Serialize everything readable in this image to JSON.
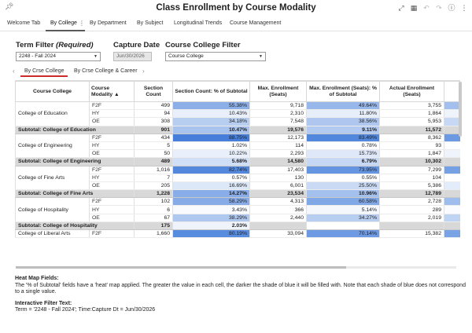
{
  "header": {
    "title": "Class Enrollment by Course Modality",
    "icons": [
      "pin-icon",
      "expand-icon",
      "grid-icon",
      "undo-icon",
      "redo-icon",
      "info-icon",
      "more-vertical-icon"
    ]
  },
  "tabs": [
    {
      "label": "Welcome Tab"
    },
    {
      "label": "By College"
    },
    {
      "label": "By Department"
    },
    {
      "label": "By Subject"
    },
    {
      "label": "Longitudinal Trends"
    },
    {
      "label": "Course Management"
    }
  ],
  "filters": {
    "term_label": "Term Filter ",
    "term_label_italic": "(Required)",
    "term_value": "2248 - Fall 2024",
    "capture_label": "Capture Date",
    "capture_value": "Jun/30/2026",
    "college_label": "Course College Filter",
    "college_value": "Course College"
  },
  "subtabs": [
    {
      "label": "By Crse College"
    },
    {
      "label": "By Crse College & Career"
    }
  ],
  "table": {
    "headers": [
      "Course College",
      "Course Modality",
      "Section Count",
      "Section Count: % of Subtotal",
      "Max. Enrollment (Seats)",
      "Max. Enrollment (Seats): % of Subtotal",
      "Actual Enrollment (Seats)",
      "Actu"
    ],
    "groups": [
      {
        "college": "College of Education",
        "rows": [
          {
            "mod": "F2F",
            "sec": "499",
            "sec_pct": "55.38%",
            "max": "9,718",
            "max_pct": "49.64%",
            "act": "3,755"
          },
          {
            "mod": "HY",
            "sec": "94",
            "sec_pct": "10.43%",
            "max": "2,310",
            "max_pct": "11.80%",
            "act": "1,864"
          },
          {
            "mod": "OE",
            "sec": "308",
            "sec_pct": "34.18%",
            "max": "7,548",
            "max_pct": "38.56%",
            "act": "5,953"
          }
        ],
        "subtotal": {
          "label": "Subtotal: College of Education",
          "sec": "901",
          "sec_pct": "10.47%",
          "max": "19,576",
          "max_pct": "9.11%",
          "act": "11,572"
        }
      },
      {
        "college": "College of Engineering",
        "rows": [
          {
            "mod": "F2F",
            "sec": "434",
            "sec_pct": "88.75%",
            "max": "12,173",
            "max_pct": "83.49%",
            "act": "8,362"
          },
          {
            "mod": "HY",
            "sec": "5",
            "sec_pct": "1.02%",
            "max": "114",
            "max_pct": "0.78%",
            "act": "93"
          },
          {
            "mod": "OE",
            "sec": "50",
            "sec_pct": "10.22%",
            "max": "2,293",
            "max_pct": "15.73%",
            "act": "1,847"
          }
        ],
        "subtotal": {
          "label": "Subtotal: College of Engineering",
          "sec": "489",
          "sec_pct": "5.68%",
          "max": "14,580",
          "max_pct": "6.79%",
          "act": "10,302"
        }
      },
      {
        "college": "College of Fine Arts",
        "rows": [
          {
            "mod": "F2F",
            "sec": "1,016",
            "sec_pct": "82.74%",
            "max": "17,403",
            "max_pct": "73.95%",
            "act": "7,299"
          },
          {
            "mod": "HY",
            "sec": "7",
            "sec_pct": "0.57%",
            "max": "130",
            "max_pct": "0.55%",
            "act": "104"
          },
          {
            "mod": "OE",
            "sec": "205",
            "sec_pct": "16.69%",
            "max": "6,001",
            "max_pct": "25.50%",
            "act": "5,386"
          }
        ],
        "subtotal": {
          "label": "Subtotal: College of Fine Arts",
          "sec": "1,228",
          "sec_pct": "14.27%",
          "max": "23,534",
          "max_pct": "10.96%",
          "act": "12,789"
        }
      },
      {
        "college": "College of Hospitality",
        "rows": [
          {
            "mod": "F2F",
            "sec": "102",
            "sec_pct": "58.29%",
            "max": "4,313",
            "max_pct": "60.58%",
            "act": "2,728"
          },
          {
            "mod": "HY",
            "sec": "6",
            "sec_pct": "3.43%",
            "max": "366",
            "max_pct": "5.14%",
            "act": "289"
          },
          {
            "mod": "OE",
            "sec": "67",
            "sec_pct": "38.29%",
            "max": "2,440",
            "max_pct": "34.27%",
            "act": "2,019"
          }
        ],
        "subtotal": {
          "label": "Subtotal: College of Hospitality",
          "sec": "175",
          "sec_pct": "2.03%",
          "max": "",
          "max_pct": "",
          "act": ""
        }
      },
      {
        "college": "College of Liberal Arts",
        "rows": [
          {
            "mod": "F2F",
            "sec": "1,660",
            "sec_pct": "80.19%",
            "max": "33,094",
            "max_pct": "70.14%",
            "act": "15,382"
          }
        ]
      }
    ]
  },
  "notes": {
    "heat_title": "Heat Map Fields:",
    "heat_text": "The '% of Subtotal' fields have a 'heat' map applied. The greater the value in each cell, the darker the shade of blue it will be filled with. Note that each shade of blue does not correspond to a single value.",
    "filter_title": "Interactive Filter Text:",
    "filter_text": "Term = '2248 - Fall 2024'; Time:Capture Dt = Jun/30/2026"
  },
  "colors": {
    "heat_base": "#ffffff",
    "heat_max": "#2f6fd6",
    "subtotal_bg": "#d8d8d8",
    "active_subtab": "#cc2b2b"
  }
}
